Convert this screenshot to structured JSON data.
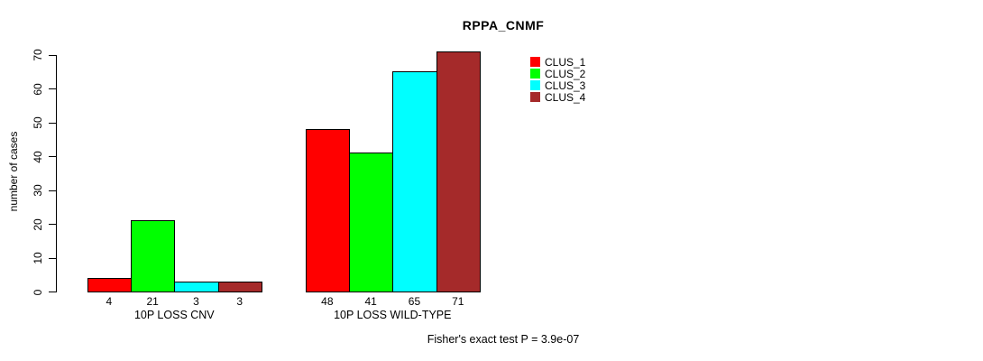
{
  "chart_data": {
    "type": "bar",
    "title": "RPPA_CNMF",
    "xlabel": "",
    "ylabel": "number of cases",
    "ylim": [
      0,
      70
    ],
    "yticks": [
      0,
      10,
      20,
      30,
      40,
      50,
      60,
      70
    ],
    "categories": [
      "10P LOSS CNV",
      "10P LOSS WILD-TYPE"
    ],
    "series": [
      {
        "name": "CLUS_1",
        "color": "#ff0000",
        "values": [
          4,
          48
        ]
      },
      {
        "name": "CLUS_2",
        "color": "#00ff00",
        "values": [
          21,
          41
        ]
      },
      {
        "name": "CLUS_3",
        "color": "#00ffff",
        "values": [
          3,
          65
        ]
      },
      {
        "name": "CLUS_4",
        "color": "#a52a2a",
        "values": [
          3,
          71
        ]
      }
    ],
    "bar_value_labels": [
      [
        4,
        21,
        3,
        3
      ],
      [
        48,
        41,
        65,
        71
      ]
    ],
    "bar_border_color": "#000000",
    "grid": false,
    "legend_position": "top-right-inside",
    "annotation": "Fisher's exact test P = 3.9e-07"
  }
}
